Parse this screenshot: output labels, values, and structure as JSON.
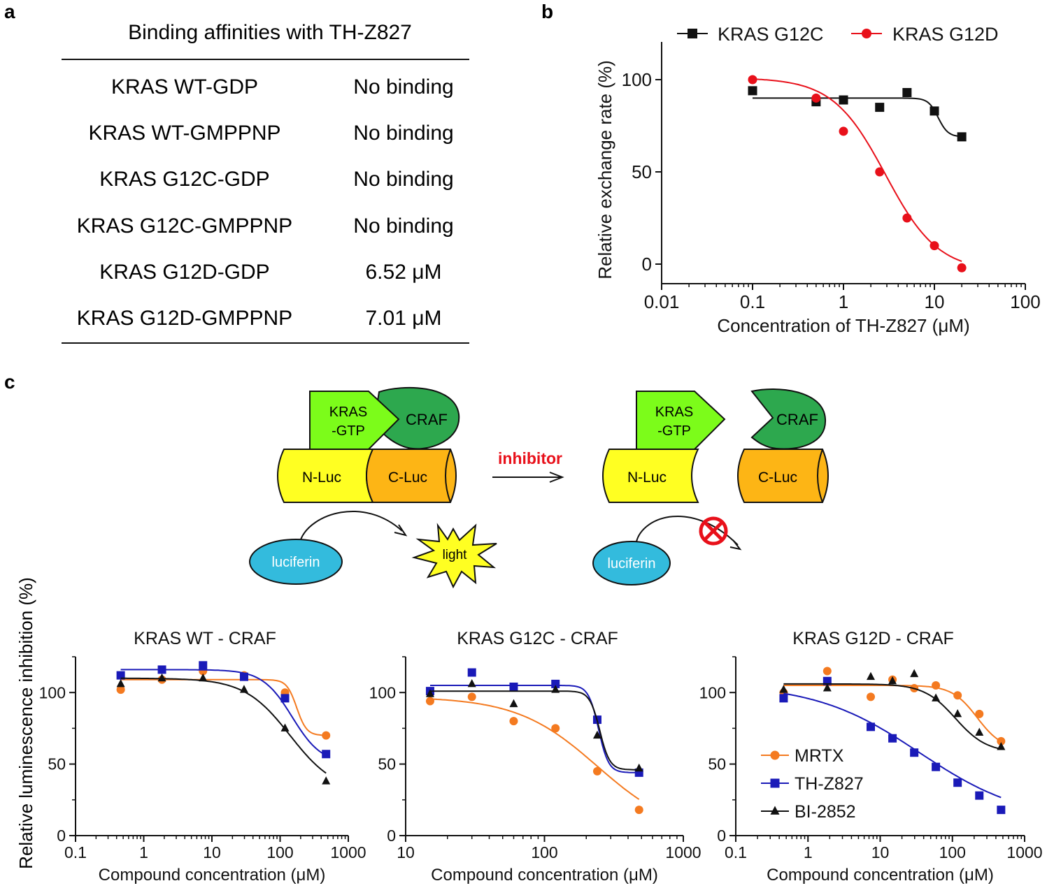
{
  "panel_labels": {
    "a": "a",
    "b": "b",
    "c": "c"
  },
  "colors": {
    "orange": "#F47A20",
    "blue": "#1A1AB8",
    "black": "#111111",
    "red": "#E8101A",
    "green_light": "#7CFC1A",
    "green_dark": "#2DA84E",
    "yellow": "#FFFF22",
    "orange_luc": "#FDB515",
    "cyan": "#33BBDD"
  },
  "table_a": {
    "title": "Binding affinities with TH-Z827",
    "rows": [
      {
        "protein": "KRAS WT-GDP",
        "value": "No binding"
      },
      {
        "protein": "KRAS WT-GMPPNP",
        "value": "No binding"
      },
      {
        "protein": "KRAS G12C-GDP",
        "value": "No binding"
      },
      {
        "protein": "KRAS G12C-GMPPNP",
        "value": "No binding"
      },
      {
        "protein": "KRAS G12D-GDP",
        "value": "6.52 μM"
      },
      {
        "protein": "KRAS G12D-GMPPNP",
        "value": "7.01 μM"
      }
    ]
  },
  "diagram_c": {
    "kras_gtp": [
      "KRAS",
      "-GTP"
    ],
    "craf": "CRAF",
    "nluc": "N-Luc",
    "cluc": "C-Luc",
    "inhibitor": "inhibitor",
    "luciferin": "luciferin",
    "light": "light"
  },
  "chart_data": [
    {
      "id": "b",
      "type": "scatter",
      "xscale": "log",
      "xlim": [
        0.01,
        100
      ],
      "ylim": [
        -10,
        120
      ],
      "xticks": [
        0.01,
        0.1,
        1,
        10,
        100
      ],
      "xtick_labels": [
        "0.01",
        "0.1",
        "1",
        "10",
        "100"
      ],
      "yticks": [
        0,
        50,
        100
      ],
      "ytick_labels": [
        "0",
        "50",
        "100"
      ],
      "xlabel": "Concentration of TH-Z827 (μM)",
      "ylabel": "Relative exchange rate (%)",
      "title": "",
      "legend_position": "top",
      "series": [
        {
          "name": "KRAS G12C",
          "color": "#111111",
          "marker": "square",
          "x": [
            0.1,
            0.5,
            1,
            2.5,
            5,
            10,
            20
          ],
          "y": [
            94,
            88,
            89,
            85,
            93,
            83,
            69
          ],
          "fit": {
            "top": 90,
            "bottom": 69,
            "ic50": 11,
            "hill": 8
          }
        },
        {
          "name": "KRAS G12D",
          "color": "#E8101A",
          "marker": "circle",
          "x": [
            0.1,
            0.5,
            1,
            2.5,
            5,
            10,
            20
          ],
          "y": [
            100,
            90,
            72,
            50,
            25,
            10,
            -2
          ],
          "fit": {
            "top": 101,
            "bottom": -4,
            "ic50": 2.9,
            "hill": 1.5
          }
        }
      ]
    },
    {
      "id": "c1",
      "type": "scatter",
      "title": "KRAS WT - CRAF",
      "xscale": "log",
      "xlim": [
        0.1,
        1000
      ],
      "ylim": [
        0,
        125
      ],
      "xticks": [
        0.1,
        1,
        10,
        100,
        1000
      ],
      "xtick_labels": [
        "0.1",
        "1",
        "10",
        "100",
        "1000"
      ],
      "yticks": [
        0,
        50,
        100
      ],
      "ytick_labels": [
        "0",
        "50",
        "100"
      ],
      "xlabel": "Compound concentration (μM)",
      "ylabel": "",
      "series": [
        {
          "name": "MRTX",
          "color": "#F47A20",
          "marker": "circle",
          "x": [
            0.46,
            1.85,
            7.4,
            29.6,
            118,
            472
          ],
          "y": [
            102,
            109,
            115,
            112,
            100,
            70
          ],
          "fit": {
            "top": 109,
            "bottom": 70,
            "ic50": 175,
            "hill": 6
          }
        },
        {
          "name": "TH-Z827",
          "color": "#1A1AB8",
          "marker": "square",
          "x": [
            0.46,
            1.85,
            7.4,
            29.6,
            118,
            472
          ],
          "y": [
            112,
            116,
            119,
            111,
            96,
            57
          ],
          "fit": {
            "top": 116,
            "bottom": 50,
            "ic50": 150,
            "hill": 2
          }
        },
        {
          "name": "BI-2852",
          "color": "#111111",
          "marker": "triangle",
          "x": [
            0.46,
            1.85,
            7.4,
            29.6,
            118,
            472
          ],
          "y": [
            106,
            110,
            110,
            102,
            75,
            38
          ],
          "fit": {
            "top": 110,
            "bottom": 30,
            "ic50": 140,
            "hill": 1.3
          }
        }
      ]
    },
    {
      "id": "c2",
      "type": "scatter",
      "title": "KRAS G12C - CRAF",
      "xscale": "log",
      "xlim": [
        10,
        1000
      ],
      "ylim": [
        0,
        125
      ],
      "xticks": [
        10,
        100,
        1000
      ],
      "xtick_labels": [
        "10",
        "100",
        "1000"
      ],
      "yticks": [
        0,
        50,
        100
      ],
      "ytick_labels": [
        "0",
        "50",
        "100"
      ],
      "xlabel": "Compound concentration (μM)",
      "ylabel": "",
      "series": [
        {
          "name": "MRTX",
          "color": "#F47A20",
          "marker": "circle",
          "x": [
            15,
            30,
            60,
            120,
            240,
            480
          ],
          "y": [
            94,
            97,
            80,
            75,
            45,
            18
          ],
          "fit": {
            "top": 97,
            "bottom": 0,
            "ic50": 240,
            "hill": 1.5
          }
        },
        {
          "name": "TH-Z827",
          "color": "#1A1AB8",
          "marker": "square",
          "x": [
            15,
            30,
            60,
            120,
            240,
            480
          ],
          "y": [
            101,
            114,
            104,
            106,
            81,
            44
          ],
          "fit": {
            "top": 105,
            "bottom": 44,
            "ic50": 245,
            "hill": 12
          }
        },
        {
          "name": "BI-2852",
          "color": "#111111",
          "marker": "triangle",
          "x": [
            15,
            30,
            60,
            120,
            240,
            480
          ],
          "y": [
            99,
            106,
            92,
            102,
            70,
            47
          ],
          "fit": {
            "top": 101,
            "bottom": 46,
            "ic50": 250,
            "hill": 12
          }
        }
      ]
    },
    {
      "id": "c3",
      "type": "scatter",
      "title": "KRAS G12D - CRAF",
      "xscale": "log",
      "xlim": [
        0.1,
        1000
      ],
      "ylim": [
        0,
        125
      ],
      "xticks": [
        0.1,
        1,
        10,
        100,
        1000
      ],
      "xtick_labels": [
        "0.1",
        "1",
        "10",
        "100",
        "1000"
      ],
      "yticks": [
        0,
        50,
        100
      ],
      "ytick_labels": [
        "0",
        "50",
        "100"
      ],
      "xlabel": "Compound concentration (μM)",
      "ylabel": "",
      "legend_position": "bottom-left",
      "series": [
        {
          "name": "MRTX",
          "color": "#F47A20",
          "marker": "circle",
          "x": [
            0.46,
            1.85,
            7.4,
            14.8,
            29.6,
            59,
            118,
            236,
            472
          ],
          "y": [
            100,
            115,
            97,
            109,
            103,
            105,
            98,
            85,
            66
          ],
          "fit": {
            "top": 105,
            "bottom": 60,
            "ic50": 220,
            "hill": 2.5
          }
        },
        {
          "name": "TH-Z827",
          "color": "#1A1AB8",
          "marker": "square",
          "x": [
            0.46,
            1.85,
            7.4,
            14.8,
            29.6,
            59,
            118,
            236,
            472
          ],
          "y": [
            96,
            108,
            76,
            68,
            58,
            48,
            37,
            28,
            18
          ],
          "fit": {
            "top": 106,
            "bottom": 10,
            "ic50": 35,
            "hill": 0.6
          }
        },
        {
          "name": "BI-2852",
          "color": "#111111",
          "marker": "triangle",
          "x": [
            0.46,
            1.85,
            7.4,
            14.8,
            29.6,
            59,
            118,
            236,
            472
          ],
          "y": [
            102,
            103,
            111,
            108,
            113,
            96,
            85,
            72,
            62
          ],
          "fit": {
            "top": 106,
            "bottom": 58,
            "ic50": 110,
            "hill": 2
          }
        }
      ]
    }
  ],
  "shared_ylabel_c": "Relative luminescence inhibition (%)"
}
